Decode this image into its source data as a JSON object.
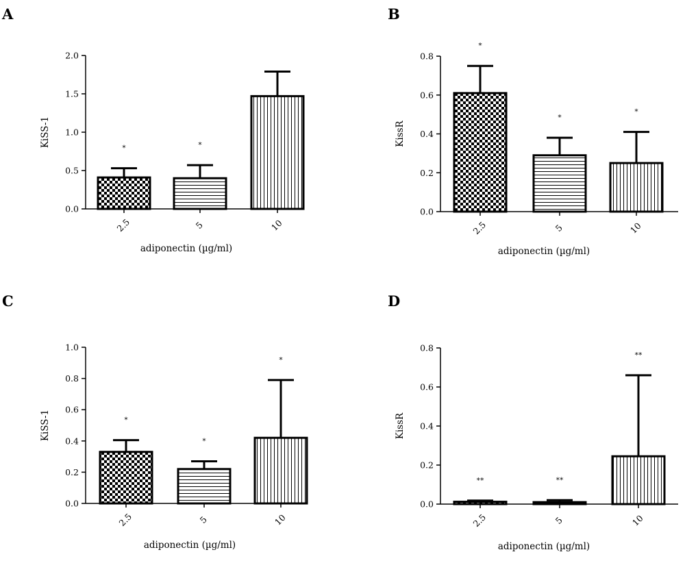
{
  "chart_data": [
    {
      "panel": "A",
      "type": "bar",
      "categories": [
        "2.5",
        "5",
        "10"
      ],
      "values": [
        0.41,
        0.4,
        1.47
      ],
      "errors": [
        0.12,
        0.17,
        0.32
      ],
      "significance": [
        "*",
        "*",
        ""
      ],
      "patterns": [
        "checker",
        "hlines",
        "vlines"
      ],
      "ylabel": "KiSS-1",
      "xlabel": "adiponectin (µg/ml)",
      "ylim": [
        0,
        2.0
      ],
      "yticks": [
        "0.0",
        "0.5",
        "1.0",
        "1.5",
        "2.0"
      ]
    },
    {
      "panel": "B",
      "type": "bar",
      "categories": [
        "2.5",
        "5",
        "10"
      ],
      "values": [
        0.61,
        0.29,
        0.25
      ],
      "errors": [
        0.14,
        0.09,
        0.16
      ],
      "significance": [
        "*",
        "*",
        "*"
      ],
      "patterns": [
        "checker",
        "hlines",
        "vlines"
      ],
      "ylabel": "KissR",
      "xlabel": "adiponectin (µg/ml)",
      "ylim": [
        0,
        0.8
      ],
      "yticks": [
        "0.0",
        "0.2",
        "0.4",
        "0.6",
        "0.8"
      ]
    },
    {
      "panel": "C",
      "type": "bar",
      "categories": [
        "2.5",
        "5",
        "10"
      ],
      "values": [
        0.33,
        0.22,
        0.42
      ],
      "errors": [
        0.075,
        0.05,
        0.37
      ],
      "significance": [
        "*",
        "*",
        "*"
      ],
      "patterns": [
        "checker",
        "hlines",
        "vlines"
      ],
      "ylabel": "KiSS-1",
      "xlabel": "adiponectin (µg/ml)",
      "ylim": [
        0,
        1.0
      ],
      "yticks": [
        "0.0",
        "0.2",
        "0.4",
        "0.6",
        "0.8",
        "1.0"
      ]
    },
    {
      "panel": "D",
      "type": "bar",
      "categories": [
        "2.5",
        "5",
        "10"
      ],
      "values": [
        0.012,
        0.01,
        0.245
      ],
      "errors": [
        0.006,
        0.01,
        0.415
      ],
      "significance": [
        "**",
        "**",
        "**"
      ],
      "patterns": [
        "checker",
        "hlines",
        "vlines"
      ],
      "ylabel": "KissR",
      "xlabel": "adiponectin (µg/ml)",
      "ylim": [
        0,
        0.8
      ],
      "yticks": [
        "0.0",
        "0.2",
        "0.4",
        "0.6",
        "0.8"
      ]
    }
  ],
  "colors": {
    "ink": "#000000",
    "background": "#ffffff"
  }
}
